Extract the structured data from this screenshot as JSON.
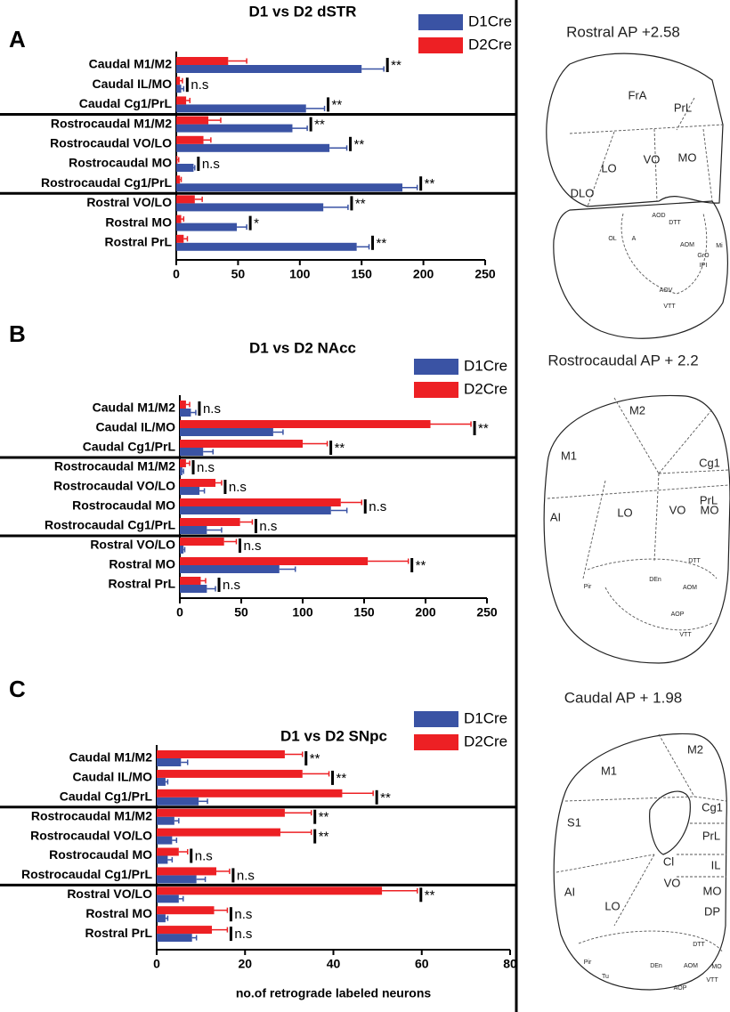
{
  "panels": [
    "A",
    "B",
    "C"
  ],
  "chart_data": [
    {
      "type": "bar",
      "orientation": "horizontal",
      "title": "D1 vs D2 dSTR",
      "categories": [
        "Caudal M1/M2",
        "Caudal IL/MO",
        "Caudal Cg1/PrL",
        "Rostrocaudal M1/M2",
        "Rostrocaudal VO/LO",
        "Rostrocaudal MO",
        "Rostrocaudal Cg1/PrL",
        "Rostral VO/LO",
        "Rostral MO",
        "Rostral PrL"
      ],
      "series": [
        {
          "name": "D1Cre",
          "color": "#3a53a4",
          "values": [
            150,
            4,
            105,
            94,
            124,
            14,
            183,
            119,
            49,
            146
          ],
          "errors": [
            18,
            2,
            15,
            12,
            14,
            1,
            12,
            20,
            8,
            10
          ]
        },
        {
          "name": "D2Cre",
          "color": "#ed2024",
          "values": [
            42,
            3,
            8,
            26,
            22,
            1,
            3,
            15,
            4,
            6
          ],
          "errors": [
            15,
            2,
            3,
            10,
            6,
            1,
            1,
            6,
            2,
            3
          ]
        }
      ],
      "significance": [
        "**",
        "n.s",
        "**",
        "**",
        "**",
        "n.s",
        "**",
        "**",
        "*",
        "**"
      ],
      "xlim": [
        0,
        250
      ],
      "xticks": [
        0,
        50,
        100,
        150,
        200,
        250
      ],
      "legend": "top-right"
    },
    {
      "type": "bar",
      "orientation": "horizontal",
      "title": "D1 vs D2 NAcc",
      "categories": [
        "Caudal M1/M2",
        "Caudal IL/MO",
        "Caudal Cg1/PrL",
        "Rostrocaudal M1/M2",
        "Rostrocaudal VO/LO",
        "Rostrocaudal MO",
        "Rostrocaudal Cg1/PrL",
        "Rostral VO/LO",
        "Rostral MO",
        "Rostral PrL"
      ],
      "series": [
        {
          "name": "D1Cre",
          "color": "#3a53a4",
          "values": [
            9,
            76,
            19,
            2,
            16,
            123,
            22,
            3,
            81,
            22
          ],
          "errors": [
            4,
            8,
            8,
            1,
            4,
            13,
            12,
            1,
            13,
            7
          ]
        },
        {
          "name": "D2Cre",
          "color": "#ed2024",
          "values": [
            5,
            204,
            100,
            5,
            29,
            131,
            49,
            36,
            153,
            17
          ],
          "errors": [
            3,
            33,
            20,
            3,
            5,
            17,
            10,
            10,
            33,
            4
          ]
        }
      ],
      "significance": [
        "n.s",
        "**",
        "**",
        "n.s",
        "n.s",
        "n.s",
        "n.s",
        "n.s",
        "**",
        "n.s"
      ],
      "xlim": [
        0,
        250
      ],
      "xticks": [
        0,
        50,
        100,
        150,
        200,
        250
      ],
      "legend": "top-right"
    },
    {
      "type": "bar",
      "orientation": "horizontal",
      "title": "D1 vs D2 SNpc",
      "categories": [
        "Caudal M1/M2",
        "Caudal IL/MO",
        "Caudal Cg1/PrL",
        "Rostrocaudal M1/M2",
        "Rostrocaudal VO/LO",
        "Rostrocaudal MO",
        "Rostrocaudal Cg1/PrL",
        "Rostral VO/LO",
        "Rostral MO",
        "Rostral PrL"
      ],
      "series": [
        {
          "name": "D1Cre",
          "color": "#3a53a4",
          "values": [
            5.5,
            2,
            9.5,
            4,
            3.5,
            2.5,
            9,
            5,
            2,
            8
          ],
          "errors": [
            1.5,
            0.5,
            2,
            1,
            1,
            1,
            2,
            1,
            0.5,
            1
          ]
        },
        {
          "name": "D2Cre",
          "color": "#ed2024",
          "values": [
            29,
            33,
            42,
            29,
            28,
            5,
            13.5,
            51,
            13,
            12.5
          ],
          "errors": [
            4,
            6,
            7,
            6,
            7,
            2,
            3,
            8,
            3,
            3.5
          ]
        }
      ],
      "significance": [
        "**",
        "**",
        "**",
        "**",
        "**",
        "n.s",
        "n.s",
        "**",
        "n.s",
        "n.s"
      ],
      "xlim": [
        0,
        80
      ],
      "xticks": [
        0,
        20,
        40,
        60,
        80
      ],
      "xlabel": "no.of retrograde labeled neurons",
      "legend": "top-right"
    }
  ],
  "atlas": [
    {
      "title": "Rostral AP +2.58",
      "labels": [
        "FrA",
        "PrL",
        "LO",
        "VO",
        "MO",
        "DLO",
        "AOD",
        "DTT",
        "OL",
        "A",
        "AOM",
        "GrO",
        "IPI",
        "Mi",
        "AOV",
        "VTT"
      ]
    },
    {
      "title": "Rostrocaudal AP + 2.2",
      "labels": [
        "M2",
        "Cg1",
        "M1",
        "PrL",
        "AI",
        "LO",
        "VO",
        "MO",
        "DTT",
        "DEn",
        "AOM",
        "AOP",
        "Pir",
        "VTT"
      ]
    },
    {
      "title": "Caudal AP + 1.98",
      "labels": [
        "M2",
        "M1",
        "Cg1",
        "PrL",
        "S1",
        "Cl",
        "IL",
        "VO",
        "MO",
        "DP",
        "AI",
        "LO",
        "DTT",
        "DEn",
        "AOM",
        "AOP",
        "MO",
        "Pir",
        "Tu",
        "VTT"
      ]
    }
  ]
}
